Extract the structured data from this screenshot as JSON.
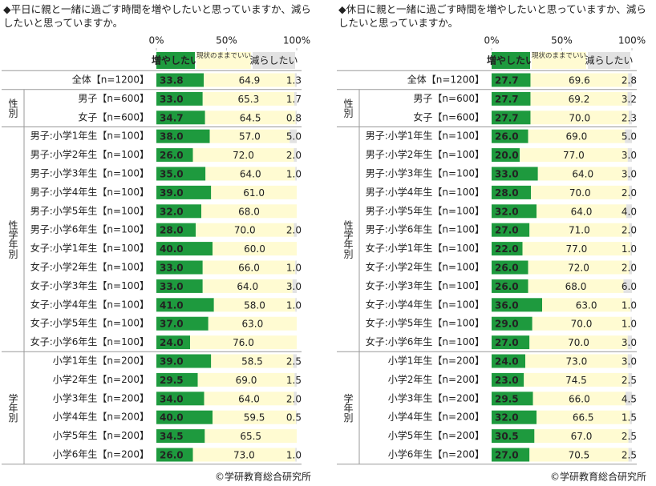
{
  "chart_data": [
    {
      "type": "stacked_bar_horizontal",
      "title": "◆平日に親と一緒に過ごす時間を増やしたいと思っていますか、減らしたいと思っていますか。",
      "groups": [
        {
          "label": null,
          "categories": [
            "全体【n=1200】"
          ]
        },
        {
          "label": "性別",
          "categories": [
            "男子【n=600】",
            "女子【n=600】"
          ]
        },
        {
          "label": "性学年別",
          "categories": [
            "男子:小学1年生【n=100】",
            "男子:小学2年生【n=100】",
            "男子:小学3年生【n=100】",
            "男子:小学4年生【n=100】",
            "男子:小学5年生【n=100】",
            "男子:小学6年生【n=100】",
            "女子:小学1年生【n=100】",
            "女子:小学2年生【n=100】",
            "女子:小学3年生【n=100】",
            "女子:小学4年生【n=100】",
            "女子:小学5年生【n=100】",
            "女子:小学6年生【n=100】"
          ]
        },
        {
          "label": "学年別",
          "categories": [
            "小学1年生【n=200】",
            "小学2年生【n=200】",
            "小学3年生【n=200】",
            "小学4年生【n=200】",
            "小学5年生【n=200】",
            "小学6年生【n=200】"
          ]
        }
      ],
      "xlim": [
        0,
        100
      ],
      "xticks": [
        {
          "value": 0,
          "label": "0%"
        },
        {
          "value": 50,
          "label": "50%"
        },
        {
          "value": 100,
          "label": "100%"
        }
      ],
      "series": [
        {
          "name": "増やしたい",
          "color": "#1e9a3e",
          "values": [
            33.8,
            33,
            34.7,
            38,
            26,
            35,
            39,
            32,
            28,
            40,
            33,
            33,
            41,
            37,
            24,
            39,
            29.5,
            34,
            40,
            34.5,
            26
          ],
          "value_labels": [
            "33.8",
            "33.0",
            "34.7",
            "38.0",
            "26.0",
            "35.0",
            "39.0",
            "32.0",
            "28.0",
            "40.0",
            "33.0",
            "33.0",
            "41.0",
            "37.0",
            "24.0",
            "39.0",
            "29.5",
            "34.0",
            "40.0",
            "34.5",
            "26.0"
          ]
        },
        {
          "name": "現状のままでいい",
          "color": "#fffbd2",
          "values": [
            64.9,
            65.3,
            64.5,
            57,
            72,
            64,
            61,
            68,
            70,
            60,
            66,
            64,
            58,
            63,
            76,
            58.5,
            69,
            64,
            59.5,
            65.5,
            73
          ],
          "value_labels": [
            "64.9",
            "65.3",
            "64.5",
            "57.0",
            "72.0",
            "64.0",
            "61.0",
            "68.0",
            "70.0",
            "60.0",
            "66.0",
            "64.0",
            "58.0",
            "63.0",
            "76.0",
            "58.5",
            "69.0",
            "64.0",
            "59.5",
            "65.5",
            "73.0"
          ]
        },
        {
          "name": "減らしたい",
          "color": "#e2e2e2",
          "values": [
            1.3,
            1.7,
            0.8,
            5,
            2,
            1,
            null,
            null,
            2,
            null,
            1,
            3,
            1,
            null,
            null,
            2.5,
            1.5,
            2,
            0.5,
            null,
            1
          ],
          "value_labels": [
            "1.3",
            "1.7",
            "0.8",
            "5.0",
            "2.0",
            "1.0",
            null,
            null,
            "2.0",
            null,
            "1.0",
            "3.0",
            "1.0",
            null,
            null,
            "2.5",
            "1.5",
            "2.0",
            "0.5",
            null,
            "1.0"
          ]
        }
      ],
      "source": "©学研教育総合研究所"
    },
    {
      "type": "stacked_bar_horizontal",
      "title": "◆休日に親と一緒に過ごす時間を増やしたいと思っていますか、減らしたいと思っていますか。",
      "groups": [
        {
          "label": null,
          "categories": [
            "全体【n=1200】"
          ]
        },
        {
          "label": "性別",
          "categories": [
            "男子【n=600】",
            "女子【n=600】"
          ]
        },
        {
          "label": "性学年別",
          "categories": [
            "男子:小学1年生【n=100】",
            "男子:小学2年生【n=100】",
            "男子:小学3年生【n=100】",
            "男子:小学4年生【n=100】",
            "男子:小学5年生【n=100】",
            "男子:小学6年生【n=100】",
            "女子:小学1年生【n=100】",
            "女子:小学2年生【n=100】",
            "女子:小学3年生【n=100】",
            "女子:小学4年生【n=100】",
            "女子:小学5年生【n=100】",
            "女子:小学6年生【n=100】"
          ]
        },
        {
          "label": "学年別",
          "categories": [
            "小学1年生【n=200】",
            "小学2年生【n=200】",
            "小学3年生【n=200】",
            "小学4年生【n=200】",
            "小学5年生【n=200】",
            "小学6年生【n=200】"
          ]
        }
      ],
      "xlim": [
        0,
        100
      ],
      "xticks": [
        {
          "value": 0,
          "label": "0%"
        },
        {
          "value": 50,
          "label": "50%"
        },
        {
          "value": 100,
          "label": "100%"
        }
      ],
      "series": [
        {
          "name": "増やしたい",
          "color": "#1e9a3e",
          "values": [
            27.7,
            27.7,
            27.7,
            26,
            20,
            33,
            28,
            32,
            27,
            22,
            26,
            26,
            36,
            29,
            27,
            24,
            23,
            29.5,
            32,
            30.5,
            27
          ],
          "value_labels": [
            "27.7",
            "27.7",
            "27.7",
            "26.0",
            "20.0",
            "33.0",
            "28.0",
            "32.0",
            "27.0",
            "22.0",
            "26.0",
            "26.0",
            "36.0",
            "29.0",
            "27.0",
            "24.0",
            "23.0",
            "29.5",
            "32.0",
            "30.5",
            "27.0"
          ]
        },
        {
          "name": "現状のままでいい",
          "color": "#fffbd2",
          "values": [
            69.6,
            69.2,
            70,
            69,
            77,
            64,
            70,
            64,
            71,
            77,
            72,
            68,
            63,
            70,
            70,
            73,
            74.5,
            66,
            66.5,
            67,
            70.5
          ],
          "value_labels": [
            "69.6",
            "69.2",
            "70.0",
            "69.0",
            "77.0",
            "64.0",
            "70.0",
            "64.0",
            "71.0",
            "77.0",
            "72.0",
            "68.0",
            "63.0",
            "70.0",
            "70.0",
            "73.0",
            "74.5",
            "66.0",
            "66.5",
            "67.0",
            "70.5"
          ]
        },
        {
          "name": "減らしたい",
          "color": "#e2e2e2",
          "values": [
            2.8,
            3.2,
            2.3,
            5,
            3,
            3,
            2,
            4,
            2,
            1,
            2,
            6,
            1,
            1,
            3,
            3,
            2.5,
            4.5,
            1.5,
            2.5,
            2.5
          ],
          "value_labels": [
            "2.8",
            "3.2",
            "2.3",
            "5.0",
            "3.0",
            "3.0",
            "2.0",
            "4.0",
            "2.0",
            "1.0",
            "2.0",
            "6.0",
            "1.0",
            "1.0",
            "3.0",
            "3.0",
            "2.5",
            "4.5",
            "1.5",
            "2.5",
            "2.5"
          ]
        }
      ],
      "source": "©学研教育総合研究所"
    }
  ]
}
